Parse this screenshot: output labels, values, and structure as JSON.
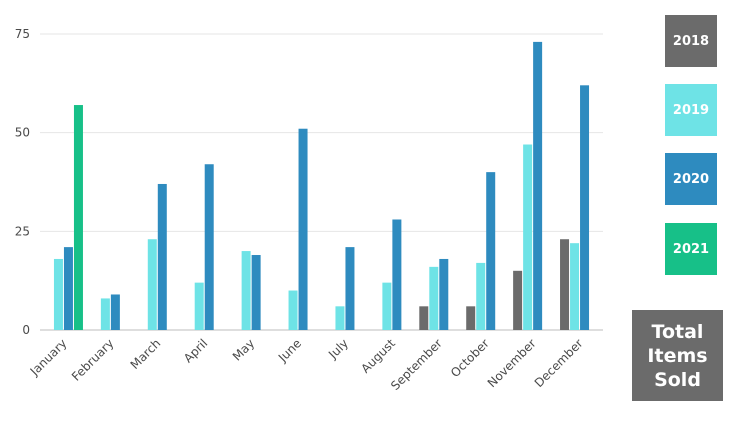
{
  "chart_data": {
    "type": "bar",
    "title": "Total Items Sold",
    "categories": [
      "January",
      "February",
      "March",
      "April",
      "May",
      "June",
      "July",
      "August",
      "September",
      "October",
      "November",
      "December"
    ],
    "series": [
      {
        "name": "2018",
        "color": "#6b6b6b",
        "values": [
          null,
          null,
          null,
          null,
          null,
          null,
          null,
          null,
          6,
          6,
          15,
          23
        ]
      },
      {
        "name": "2019",
        "color": "#6ee3e6",
        "values": [
          18,
          8,
          23,
          12,
          20,
          10,
          6,
          12,
          16,
          17,
          47,
          22
        ]
      },
      {
        "name": "2020",
        "color": "#2e8bbf",
        "values": [
          21,
          9,
          37,
          42,
          19,
          51,
          21,
          28,
          18,
          40,
          73,
          62
        ]
      },
      {
        "name": "2021",
        "color": "#17c088",
        "values": [
          57,
          null,
          null,
          null,
          null,
          null,
          null,
          null,
          null,
          null,
          null,
          null
        ]
      }
    ],
    "yticks": [
      0,
      25,
      50,
      75
    ],
    "ylim": [
      0,
      75
    ],
    "grid": true,
    "legend_position": "right"
  }
}
